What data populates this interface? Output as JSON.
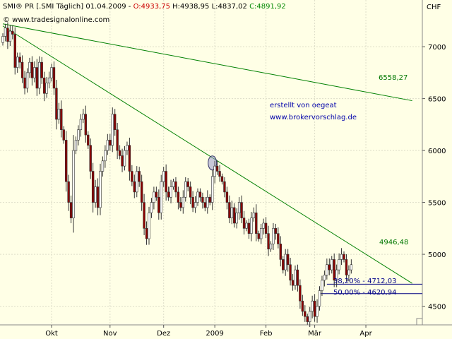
{
  "header": {
    "prefix": "SMI® PR [.SMI  Täglich] 01.04.2009 - ",
    "open_text": "O:4933,75",
    "hlc_text": " H:4938,95 L:4837,02 ",
    "close_text": "C:4891,92",
    "source": "© www.tradesignalonline.com"
  },
  "currency": "CHF",
  "annotation": {
    "line1": "erstellt von oegeat",
    "line2": "www.brokervorschlag.de"
  },
  "labels": {
    "upper_trend": "6558,27",
    "lower_trend": "4946,48",
    "fib382": "38,20% - 4712,03",
    "fib50": "50,00% - 4620,94"
  },
  "colors": {
    "background": "#FFFFE6",
    "up_candle": "#FFFFFF",
    "down_candle": "#8B0000",
    "trendline": "#008000",
    "fib_line": "#000080",
    "marker": "#9999CC"
  },
  "chart_data": {
    "type": "candlestick",
    "y_unit": "CHF",
    "ylim": [
      4320,
      7450
    ],
    "yticks": [
      4500,
      5000,
      5500,
      6000,
      6500,
      7000
    ],
    "x_labels": [
      "Okt",
      "Nov",
      "Dez",
      "2009",
      "Feb",
      "Mär",
      "Apr"
    ],
    "trendlines": [
      {
        "name": "upper",
        "from": {
          "i": 0,
          "y": 7220
        },
        "to": {
          "i": 168,
          "y": 6480
        },
        "label_value": "6558,27"
      },
      {
        "name": "lower",
        "from": {
          "i": 0,
          "y": 7200
        },
        "to": {
          "i": 168,
          "y": 4720
        },
        "label_value": "4946,48"
      }
    ],
    "fib_levels": [
      {
        "ratio": "38,20%",
        "value": 4712.03,
        "from_i": 133
      },
      {
        "ratio": "50,00%",
        "value": 4620.94,
        "from_i": 130
      }
    ],
    "marker": {
      "i": 86,
      "y": 5880
    },
    "closes": [
      7100,
      7180,
      7050,
      7150,
      7120,
      6800,
      6900,
      6850,
      6700,
      6600,
      6750,
      6850,
      6700,
      6800,
      6600,
      6850,
      6700,
      6550,
      6650,
      6700,
      6800,
      6600,
      6300,
      6400,
      6200,
      6100,
      5700,
      5500,
      5350,
      6000,
      6100,
      6200,
      6300,
      6350,
      6150,
      6050,
      5800,
      5500,
      5650,
      5450,
      5800,
      5900,
      6000,
      6100,
      6050,
      6350,
      6200,
      6000,
      5950,
      5850,
      6000,
      6050,
      5800,
      5700,
      5600,
      5800,
      5700,
      5500,
      5250,
      5150,
      5400,
      5500,
      5600,
      5550,
      5400,
      5700,
      5800,
      5600,
      5550,
      5650,
      5700,
      5600,
      5500,
      5450,
      5550,
      5700,
      5650,
      5550,
      5450,
      5500,
      5600,
      5550,
      5500,
      5450,
      5550,
      5500,
      5750,
      5850,
      5800,
      5750,
      5700,
      5600,
      5500,
      5350,
      5450,
      5300,
      5400,
      5500,
      5350,
      5250,
      5300,
      5200,
      5350,
      5400,
      5200,
      5150,
      5250,
      5300,
      5200,
      5050,
      5100,
      5250,
      5200,
      5100,
      4950,
      4850,
      5000,
      4900,
      4750,
      4700,
      4850,
      4700,
      4550,
      4450,
      4400,
      4350,
      4450,
      4550,
      4400,
      4500,
      4650,
      4750,
      4800,
      4900,
      4850,
      4950,
      4750,
      4850,
      4950,
      5000,
      4950,
      4800,
      4850,
      4900
    ]
  }
}
